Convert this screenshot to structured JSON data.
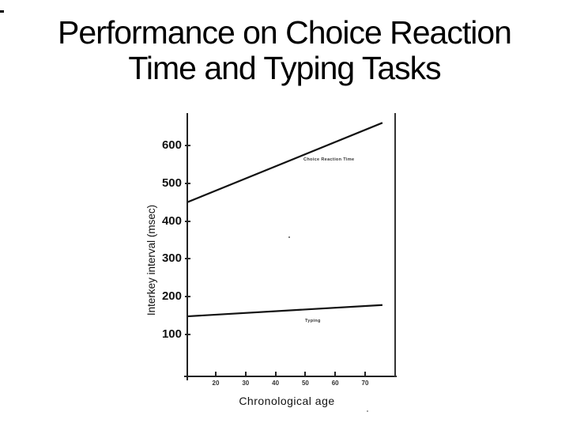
{
  "slide": {
    "title": {
      "line1": "Performance on Choice Reaction",
      "line2": "Time and Typing Tasks"
    }
  },
  "chart_data": {
    "type": "line",
    "title": "",
    "xlabel": "Chronological age",
    "ylabel": "Interkey interval (msec)",
    "x_ticks": [
      20,
      30,
      40,
      50,
      60,
      70
    ],
    "y_ticks": [
      100,
      200,
      300,
      400,
      500,
      600
    ],
    "xlim": [
      10,
      79
    ],
    "ylim": [
      0,
      700
    ],
    "grid": false,
    "legend_position": "inline-labels-on-plot",
    "series": [
      {
        "name": "Choice Reaction Time",
        "points": [
          [
            10.5,
            450
          ],
          [
            75.8,
            660
          ]
        ]
      },
      {
        "name": "Typing",
        "points": [
          [
            10.5,
            148
          ],
          [
            75.8,
            178
          ]
        ]
      }
    ],
    "colors": {
      "line": "#111111",
      "axis": "#222222",
      "text": "#111111",
      "background": "#ffffff"
    }
  }
}
